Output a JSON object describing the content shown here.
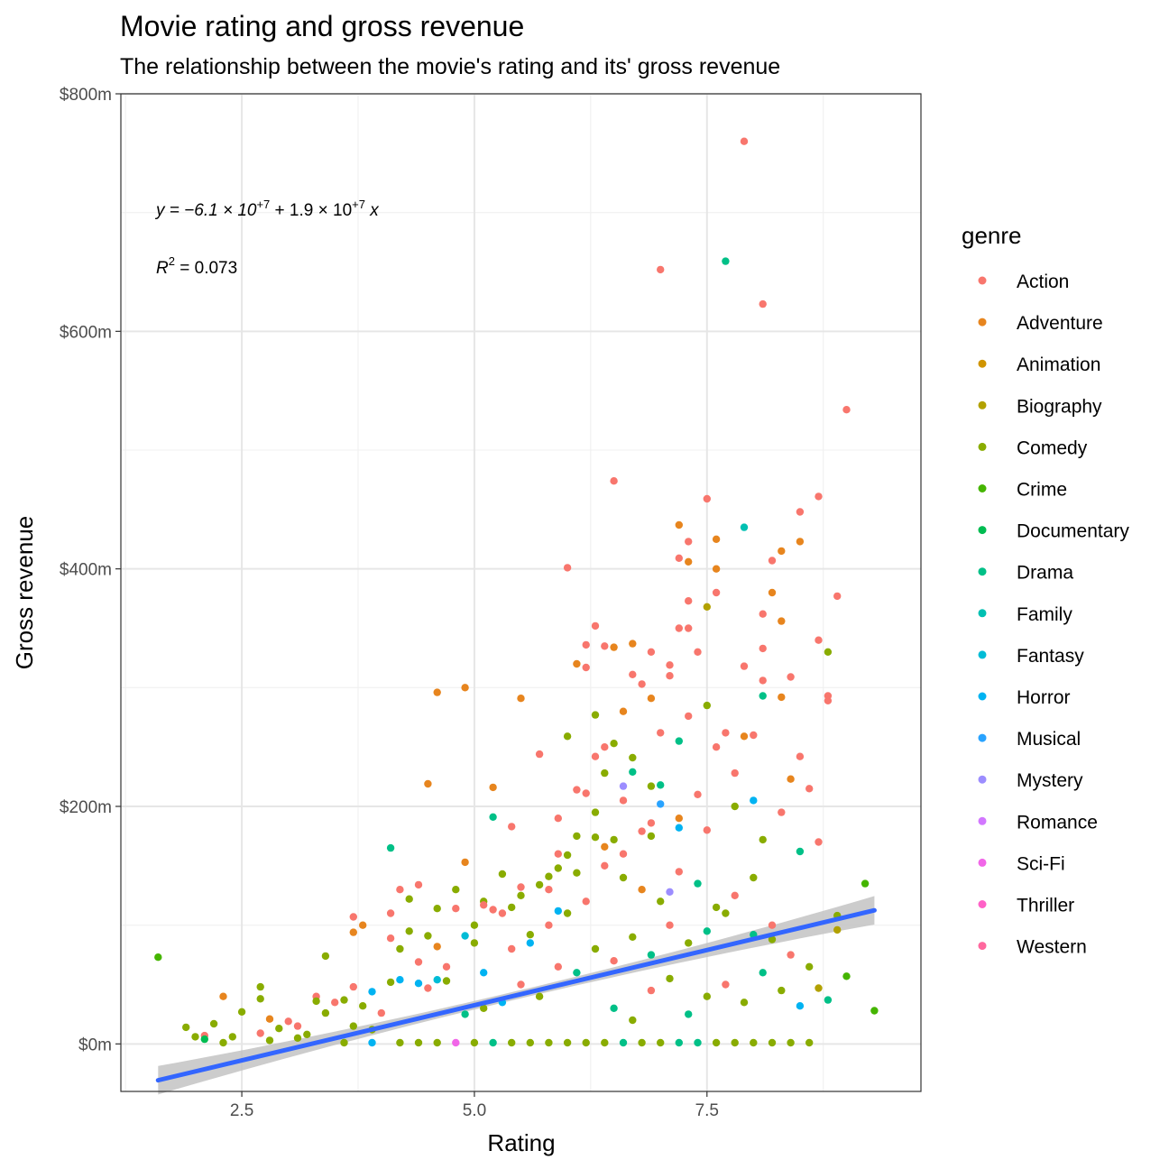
{
  "chart_data": {
    "type": "scatter",
    "title": "Movie rating and gross revenue",
    "subtitle": "The relationship between the movie's rating and its' gross revenue",
    "xlabel": "Rating",
    "ylabel": "Gross revenue",
    "xlim": [
      1.2,
      9.8
    ],
    "ylim": [
      -40,
      800
    ],
    "x_ticks": [
      2.5,
      5.0,
      7.5
    ],
    "x_tick_labels": [
      "2.5",
      "5.0",
      "7.5"
    ],
    "y_ticks": [
      0,
      200,
      400,
      600,
      800
    ],
    "y_tick_labels": [
      "$0m",
      "$200m",
      "$400m",
      "$600m",
      "$800m"
    ],
    "y_unit": "$ millions",
    "grid": true,
    "legend": {
      "title": "genre",
      "position": "right",
      "entries": [
        {
          "name": "Action",
          "color": "#F8766D"
        },
        {
          "name": "Adventure",
          "color": "#E7851E"
        },
        {
          "name": "Animation",
          "color": "#D09400"
        },
        {
          "name": "Biography",
          "color": "#B2A100"
        },
        {
          "name": "Comedy",
          "color": "#89AC00"
        },
        {
          "name": "Crime",
          "color": "#45B500"
        },
        {
          "name": "Documentary",
          "color": "#00BC51"
        },
        {
          "name": "Drama",
          "color": "#00C087"
        },
        {
          "name": "Family",
          "color": "#00C0B2"
        },
        {
          "name": "Fantasy",
          "color": "#00BCD6"
        },
        {
          "name": "Horror",
          "color": "#00B3F2"
        },
        {
          "name": "Musical",
          "color": "#29A3FF"
        },
        {
          "name": "Mystery",
          "color": "#9C8DFF"
        },
        {
          "name": "Romance",
          "color": "#D277FF"
        },
        {
          "name": "Sci-Fi",
          "color": "#F166E8"
        },
        {
          "name": "Thriller",
          "color": "#FF61C7"
        },
        {
          "name": "Western",
          "color": "#FF689E"
        }
      ]
    },
    "regression": {
      "equation_prefix": "y = −6.1 × 10",
      "intercept_exp": "+7",
      "equation_middle": " + 1.9 × 10",
      "slope_exp": "+7",
      "equation_suffix": " x",
      "r2_label": "R",
      "r2_value": " = 0.073",
      "line_x": [
        1.6,
        9.3
      ],
      "line_y": [
        -30.6,
        112.5
      ],
      "ci_halfwidth_ends": 12,
      "ci_halfwidth_mid": 3.5,
      "line_color": "#3366FF",
      "band_color": "#bfbfbf"
    },
    "points": [
      [
        1.6,
        73,
        "Crime"
      ],
      [
        1.9,
        14,
        "Comedy"
      ],
      [
        2.0,
        6,
        "Comedy"
      ],
      [
        2.1,
        7,
        "Action"
      ],
      [
        2.1,
        4,
        "Documentary"
      ],
      [
        2.2,
        17,
        "Comedy"
      ],
      [
        2.3,
        40,
        "Adventure"
      ],
      [
        2.3,
        1,
        "Comedy"
      ],
      [
        2.4,
        6,
        "Comedy"
      ],
      [
        2.5,
        27,
        "Comedy"
      ],
      [
        2.7,
        48,
        "Comedy"
      ],
      [
        2.7,
        38,
        "Comedy"
      ],
      [
        2.7,
        9,
        "Action"
      ],
      [
        2.8,
        21,
        "Adventure"
      ],
      [
        2.8,
        3,
        "Comedy"
      ],
      [
        2.9,
        13,
        "Comedy"
      ],
      [
        3.0,
        19,
        "Action"
      ],
      [
        3.1,
        15,
        "Action"
      ],
      [
        3.1,
        5,
        "Comedy"
      ],
      [
        3.2,
        8,
        "Comedy"
      ],
      [
        3.3,
        40,
        "Action"
      ],
      [
        3.3,
        36,
        "Comedy"
      ],
      [
        3.4,
        26,
        "Comedy"
      ],
      [
        3.4,
        74,
        "Comedy"
      ],
      [
        3.5,
        35,
        "Action"
      ],
      [
        3.6,
        37,
        "Comedy"
      ],
      [
        3.7,
        107,
        "Action"
      ],
      [
        3.7,
        94,
        "Adventure"
      ],
      [
        3.7,
        48,
        "Action"
      ],
      [
        3.7,
        15,
        "Comedy"
      ],
      [
        3.8,
        100,
        "Adventure"
      ],
      [
        3.8,
        32,
        "Comedy"
      ],
      [
        3.9,
        44,
        "Horror"
      ],
      [
        3.9,
        12,
        "Comedy"
      ],
      [
        4.0,
        26,
        "Action"
      ],
      [
        4.1,
        165,
        "Drama"
      ],
      [
        4.1,
        110,
        "Action"
      ],
      [
        4.1,
        89,
        "Action"
      ],
      [
        4.1,
        52,
        "Comedy"
      ],
      [
        4.2,
        130,
        "Action"
      ],
      [
        4.2,
        80,
        "Comedy"
      ],
      [
        4.2,
        54,
        "Horror"
      ],
      [
        4.3,
        122,
        "Comedy"
      ],
      [
        4.3,
        95,
        "Comedy"
      ],
      [
        4.4,
        134,
        "Action"
      ],
      [
        4.4,
        69,
        "Action"
      ],
      [
        4.4,
        51,
        "Horror"
      ],
      [
        4.5,
        219,
        "Adventure"
      ],
      [
        4.5,
        91,
        "Comedy"
      ],
      [
        4.5,
        47,
        "Action"
      ],
      [
        4.6,
        296,
        "Adventure"
      ],
      [
        4.6,
        114,
        "Comedy"
      ],
      [
        4.6,
        82,
        "Adventure"
      ],
      [
        4.6,
        54,
        "Fantasy"
      ],
      [
        4.7,
        65,
        "Action"
      ],
      [
        4.7,
        53,
        "Comedy"
      ],
      [
        4.8,
        130,
        "Comedy"
      ],
      [
        4.8,
        114,
        "Action"
      ],
      [
        4.8,
        1,
        "Sci-Fi"
      ],
      [
        4.9,
        300,
        "Adventure"
      ],
      [
        4.9,
        153,
        "Adventure"
      ],
      [
        4.9,
        91,
        "Fantasy"
      ],
      [
        5.0,
        100,
        "Comedy"
      ],
      [
        5.0,
        85,
        "Comedy"
      ],
      [
        5.1,
        120,
        "Comedy"
      ],
      [
        5.1,
        117,
        "Action"
      ],
      [
        5.1,
        60,
        "Horror"
      ],
      [
        5.2,
        216,
        "Adventure"
      ],
      [
        5.2,
        191,
        "Drama"
      ],
      [
        5.2,
        113,
        "Action"
      ],
      [
        5.3,
        143,
        "Comedy"
      ],
      [
        5.3,
        110,
        "Action"
      ],
      [
        5.4,
        183,
        "Action"
      ],
      [
        5.4,
        115,
        "Comedy"
      ],
      [
        5.5,
        291,
        "Adventure"
      ],
      [
        5.5,
        132,
        "Action"
      ],
      [
        5.5,
        125,
        "Comedy"
      ],
      [
        5.6,
        85,
        "Horror"
      ],
      [
        5.7,
        244,
        "Action"
      ],
      [
        5.7,
        134,
        "Comedy"
      ],
      [
        5.8,
        130,
        "Action"
      ],
      [
        5.8,
        141,
        "Comedy"
      ],
      [
        5.9,
        190,
        "Action"
      ],
      [
        5.9,
        148,
        "Comedy"
      ],
      [
        5.9,
        112,
        "Horror"
      ],
      [
        6.0,
        401,
        "Action"
      ],
      [
        6.0,
        259,
        "Comedy"
      ],
      [
        6.0,
        159,
        "Comedy"
      ],
      [
        6.1,
        320,
        "Adventure"
      ],
      [
        6.1,
        214,
        "Action"
      ],
      [
        6.1,
        144,
        "Comedy"
      ],
      [
        6.2,
        336,
        "Action"
      ],
      [
        6.2,
        317,
        "Action"
      ],
      [
        6.2,
        211,
        "Action"
      ],
      [
        6.3,
        352,
        "Action"
      ],
      [
        6.3,
        277,
        "Comedy"
      ],
      [
        6.3,
        242,
        "Action"
      ],
      [
        6.3,
        174,
        "Comedy"
      ],
      [
        6.4,
        335,
        "Action"
      ],
      [
        6.4,
        250,
        "Action"
      ],
      [
        6.4,
        228,
        "Comedy"
      ],
      [
        6.4,
        166,
        "Adventure"
      ],
      [
        6.5,
        474,
        "Action"
      ],
      [
        6.5,
        334,
        "Adventure"
      ],
      [
        6.5,
        253,
        "Comedy"
      ],
      [
        6.5,
        172,
        "Comedy"
      ],
      [
        6.6,
        280,
        "Adventure"
      ],
      [
        6.6,
        217,
        "Mystery"
      ],
      [
        6.6,
        160,
        "Action"
      ],
      [
        6.7,
        337,
        "Adventure"
      ],
      [
        6.7,
        311,
        "Action"
      ],
      [
        6.7,
        241,
        "Comedy"
      ],
      [
        6.7,
        229,
        "Drama"
      ],
      [
        6.8,
        303,
        "Action"
      ],
      [
        6.8,
        179,
        "Action"
      ],
      [
        6.9,
        330,
        "Action"
      ],
      [
        6.9,
        291,
        "Adventure"
      ],
      [
        6.9,
        217,
        "Comedy"
      ],
      [
        6.9,
        186,
        "Action"
      ],
      [
        7.0,
        652,
        "Action"
      ],
      [
        7.0,
        262,
        "Action"
      ],
      [
        7.0,
        218,
        "Drama"
      ],
      [
        7.0,
        202,
        "Musical"
      ],
      [
        7.1,
        319,
        "Action"
      ],
      [
        7.1,
        310,
        "Action"
      ],
      [
        7.1,
        128,
        "Mystery"
      ],
      [
        7.2,
        437,
        "Adventure"
      ],
      [
        7.2,
        409,
        "Action"
      ],
      [
        7.2,
        350,
        "Action"
      ],
      [
        7.2,
        255,
        "Drama"
      ],
      [
        7.2,
        182,
        "Horror"
      ],
      [
        7.3,
        423,
        "Action"
      ],
      [
        7.3,
        406,
        "Adventure"
      ],
      [
        7.3,
        373,
        "Action"
      ],
      [
        7.3,
        350,
        "Action"
      ],
      [
        7.3,
        276,
        "Action"
      ],
      [
        7.4,
        330,
        "Action"
      ],
      [
        7.4,
        210,
        "Action"
      ],
      [
        7.5,
        459,
        "Action"
      ],
      [
        7.5,
        368,
        "Biography"
      ],
      [
        7.5,
        285,
        "Comedy"
      ],
      [
        7.6,
        425,
        "Adventure"
      ],
      [
        7.6,
        400,
        "Adventure"
      ],
      [
        7.6,
        380,
        "Action"
      ],
      [
        7.6,
        250,
        "Action"
      ],
      [
        7.7,
        659,
        "Drama"
      ],
      [
        7.7,
        262,
        "Action"
      ],
      [
        7.8,
        228,
        "Action"
      ],
      [
        7.9,
        760,
        "Action"
      ],
      [
        7.9,
        435,
        "Family"
      ],
      [
        7.9,
        318,
        "Action"
      ],
      [
        7.9,
        259,
        "Adventure"
      ],
      [
        8.0,
        260,
        "Action"
      ],
      [
        8.0,
        205,
        "Horror"
      ],
      [
        8.1,
        623,
        "Action"
      ],
      [
        8.1,
        362,
        "Action"
      ],
      [
        8.1,
        333,
        "Action"
      ],
      [
        8.1,
        306,
        "Action"
      ],
      [
        8.1,
        293,
        "Drama"
      ],
      [
        8.2,
        407,
        "Action"
      ],
      [
        8.2,
        380,
        "Adventure"
      ],
      [
        8.3,
        415,
        "Adventure"
      ],
      [
        8.3,
        356,
        "Adventure"
      ],
      [
        8.3,
        292,
        "Adventure"
      ],
      [
        8.4,
        309,
        "Action"
      ],
      [
        8.4,
        223,
        "Adventure"
      ],
      [
        8.5,
        448,
        "Action"
      ],
      [
        8.5,
        423,
        "Adventure"
      ],
      [
        8.5,
        242,
        "Action"
      ],
      [
        8.5,
        162,
        "Drama"
      ],
      [
        8.6,
        215,
        "Action"
      ],
      [
        8.7,
        461,
        "Action"
      ],
      [
        8.7,
        340,
        "Action"
      ],
      [
        8.7,
        170,
        "Action"
      ],
      [
        8.7,
        47,
        "Biography"
      ],
      [
        8.8,
        330,
        "Comedy"
      ],
      [
        8.8,
        293,
        "Action"
      ],
      [
        8.8,
        289,
        "Action"
      ],
      [
        8.8,
        37,
        "Drama"
      ],
      [
        8.9,
        377,
        "Action"
      ],
      [
        8.9,
        108,
        "Comedy"
      ],
      [
        8.9,
        96,
        "Biography"
      ],
      [
        9.0,
        534,
        "Action"
      ],
      [
        9.0,
        57,
        "Crime"
      ],
      [
        9.2,
        135,
        "Crime"
      ],
      [
        9.3,
        28,
        "Crime"
      ],
      [
        8.6,
        1,
        "Comedy"
      ],
      [
        8.4,
        1,
        "Comedy"
      ],
      [
        8.2,
        1,
        "Comedy"
      ],
      [
        8.0,
        1,
        "Comedy"
      ],
      [
        7.8,
        1,
        "Comedy"
      ],
      [
        7.6,
        1,
        "Comedy"
      ],
      [
        7.4,
        1,
        "Drama"
      ],
      [
        7.2,
        1,
        "Drama"
      ],
      [
        7.0,
        1,
        "Comedy"
      ],
      [
        6.8,
        1,
        "Comedy"
      ],
      [
        6.6,
        1,
        "Drama"
      ],
      [
        6.4,
        1,
        "Comedy"
      ],
      [
        6.2,
        1,
        "Comedy"
      ],
      [
        6.0,
        1,
        "Comedy"
      ],
      [
        5.8,
        1,
        "Comedy"
      ],
      [
        5.6,
        1,
        "Comedy"
      ],
      [
        5.4,
        1,
        "Comedy"
      ],
      [
        5.2,
        1,
        "Drama"
      ],
      [
        5.0,
        1,
        "Comedy"
      ],
      [
        4.6,
        1,
        "Comedy"
      ],
      [
        4.4,
        1,
        "Comedy"
      ],
      [
        4.2,
        1,
        "Comedy"
      ],
      [
        3.9,
        1,
        "Horror"
      ],
      [
        3.6,
        1,
        "Comedy"
      ],
      [
        5.9,
        65,
        "Action"
      ],
      [
        6.1,
        60,
        "Drama"
      ],
      [
        6.3,
        80,
        "Comedy"
      ],
      [
        6.5,
        70,
        "Action"
      ],
      [
        6.7,
        90,
        "Comedy"
      ],
      [
        6.9,
        75,
        "Drama"
      ],
      [
        7.1,
        100,
        "Action"
      ],
      [
        7.3,
        85,
        "Comedy"
      ],
      [
        7.5,
        95,
        "Drama"
      ],
      [
        7.7,
        110,
        "Comedy"
      ],
      [
        5.5,
        50,
        "Action"
      ],
      [
        5.7,
        40,
        "Comedy"
      ],
      [
        5.3,
        35,
        "Horror"
      ],
      [
        5.1,
        30,
        "Comedy"
      ],
      [
        4.9,
        25,
        "Drama"
      ],
      [
        6.4,
        150,
        "Action"
      ],
      [
        6.6,
        140,
        "Comedy"
      ],
      [
        6.8,
        130,
        "Adventure"
      ],
      [
        7.0,
        120,
        "Comedy"
      ],
      [
        7.2,
        145,
        "Action"
      ],
      [
        7.4,
        135,
        "Drama"
      ],
      [
        7.6,
        115,
        "Comedy"
      ],
      [
        7.8,
        125,
        "Action"
      ],
      [
        8.0,
        140,
        "Comedy"
      ],
      [
        8.2,
        100,
        "Action"
      ],
      [
        6.2,
        120,
        "Action"
      ],
      [
        6.0,
        110,
        "Comedy"
      ],
      [
        5.8,
        100,
        "Action"
      ],
      [
        5.6,
        92,
        "Comedy"
      ],
      [
        5.4,
        80,
        "Action"
      ],
      [
        6.5,
        30,
        "Drama"
      ],
      [
        6.7,
        20,
        "Comedy"
      ],
      [
        6.9,
        45,
        "Action"
      ],
      [
        7.1,
        55,
        "Comedy"
      ],
      [
        7.3,
        25,
        "Drama"
      ],
      [
        7.5,
        40,
        "Comedy"
      ],
      [
        7.7,
        50,
        "Action"
      ],
      [
        7.9,
        35,
        "Comedy"
      ],
      [
        8.1,
        60,
        "Drama"
      ],
      [
        8.3,
        45,
        "Comedy"
      ],
      [
        8.5,
        32,
        "Horror"
      ],
      [
        8.6,
        65,
        "Comedy"
      ],
      [
        8.4,
        75,
        "Action"
      ],
      [
        8.2,
        88,
        "Comedy"
      ],
      [
        8.0,
        92,
        "Drama"
      ],
      [
        6.3,
        195,
        "Comedy"
      ],
      [
        6.6,
        205,
        "Action"
      ],
      [
        6.9,
        175,
        "Comedy"
      ],
      [
        7.2,
        190,
        "Adventure"
      ],
      [
        7.5,
        180,
        "Action"
      ],
      [
        7.8,
        200,
        "Comedy"
      ],
      [
        8.1,
        172,
        "Comedy"
      ],
      [
        8.3,
        195,
        "Action"
      ],
      [
        6.1,
        175,
        "Comedy"
      ],
      [
        5.9,
        160,
        "Action"
      ]
    ]
  }
}
